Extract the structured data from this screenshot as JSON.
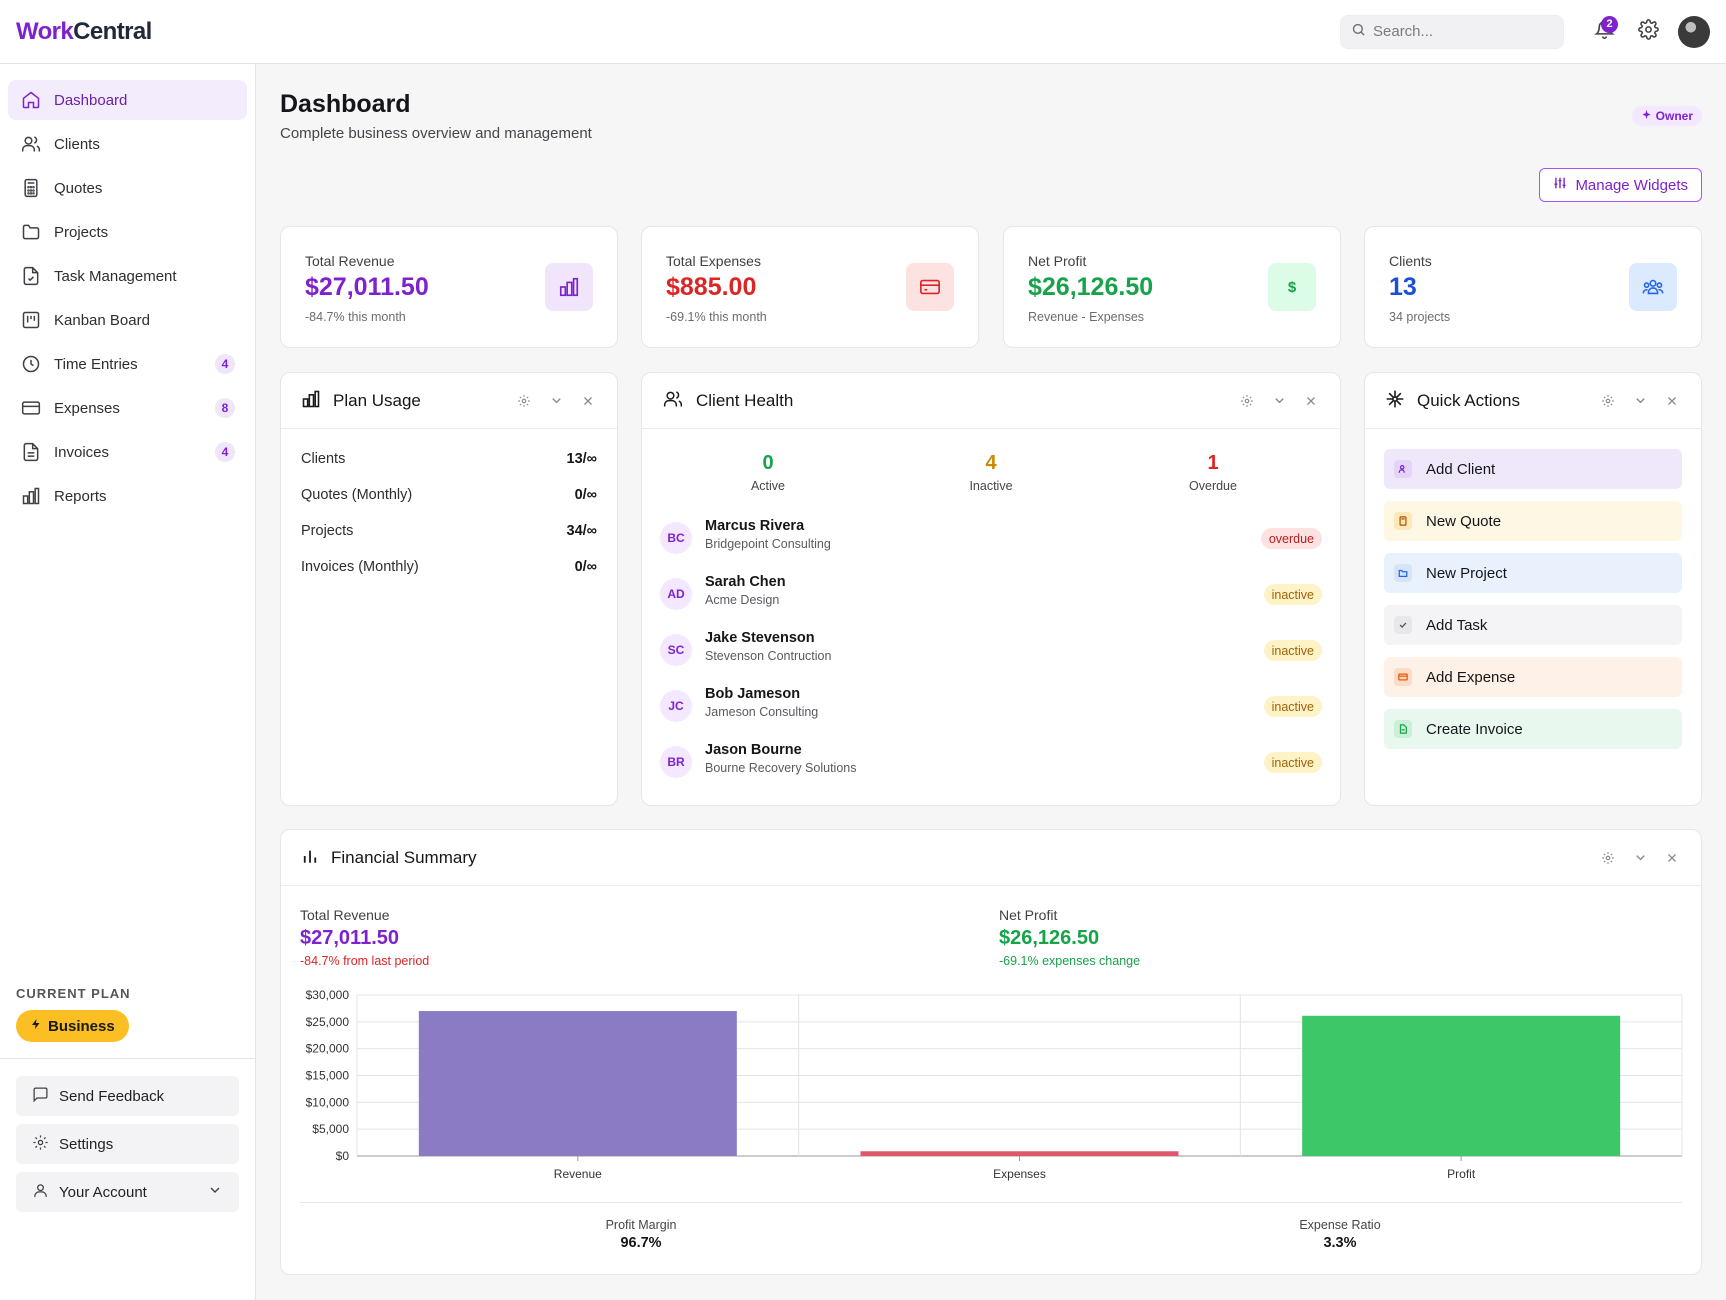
{
  "app": {
    "logo_part1": "Work",
    "logo_part2": "Central"
  },
  "topbar": {
    "search_placeholder": "Search...",
    "notification_count": "2"
  },
  "sidebar": {
    "items": [
      {
        "label": "Dashboard",
        "icon": "home-icon",
        "badge": ""
      },
      {
        "label": "Clients",
        "icon": "users-icon",
        "badge": ""
      },
      {
        "label": "Quotes",
        "icon": "calculator-icon",
        "badge": ""
      },
      {
        "label": "Projects",
        "icon": "folder-icon",
        "badge": ""
      },
      {
        "label": "Task Management",
        "icon": "task-file-icon",
        "badge": ""
      },
      {
        "label": "Kanban Board",
        "icon": "kanban-icon",
        "badge": ""
      },
      {
        "label": "Time Entries",
        "icon": "clock-icon",
        "badge": "4"
      },
      {
        "label": "Expenses",
        "icon": "credit-card-icon",
        "badge": "8"
      },
      {
        "label": "Invoices",
        "icon": "invoice-icon",
        "badge": "4"
      },
      {
        "label": "Reports",
        "icon": "bar-chart-icon",
        "badge": ""
      }
    ],
    "plan_title": "CURRENT PLAN",
    "plan_name": "Business",
    "feedback_label": "Send Feedback",
    "settings_label": "Settings",
    "account_label": "Your Account"
  },
  "header": {
    "title": "Dashboard",
    "subtitle": "Complete business overview and management",
    "role_badge": "Owner",
    "manage_widgets_label": "Manage Widgets"
  },
  "stats": [
    {
      "label": "Total Revenue",
      "value": "$27,011.50",
      "sub": "-84.7% this month",
      "color": "#7e22ce"
    },
    {
      "label": "Total Expenses",
      "value": "$885.00",
      "sub": "-69.1% this month",
      "color": "#dc2626"
    },
    {
      "label": "Net Profit",
      "value": "$26,126.50",
      "sub": "Revenue - Expenses",
      "color": "#16a34a"
    },
    {
      "label": "Clients",
      "value": "13",
      "sub": "34 projects",
      "color": "#1d4ed8"
    }
  ],
  "plan_usage": {
    "title": "Plan Usage",
    "rows": [
      {
        "label": "Clients",
        "value": "13/∞"
      },
      {
        "label": "Quotes (Monthly)",
        "value": "0/∞"
      },
      {
        "label": "Projects",
        "value": "34/∞"
      },
      {
        "label": "Invoices (Monthly)",
        "value": "0/∞"
      }
    ]
  },
  "client_health": {
    "title": "Client Health",
    "summary": [
      {
        "count": "0",
        "label": "Active",
        "color": "#16a34a"
      },
      {
        "count": "4",
        "label": "Inactive",
        "color": "#ca8a04"
      },
      {
        "count": "1",
        "label": "Overdue",
        "color": "#dc2626"
      }
    ],
    "clients": [
      {
        "initials": "BC",
        "name": "Marcus Rivera",
        "company": "Bridgepoint Consulting",
        "status": "overdue"
      },
      {
        "initials": "AD",
        "name": "Sarah Chen",
        "company": "Acme Design",
        "status": "inactive"
      },
      {
        "initials": "SC",
        "name": "Jake Stevenson",
        "company": "Stevenson Contruction",
        "status": "inactive"
      },
      {
        "initials": "JC",
        "name": "Bob Jameson",
        "company": "Jameson Consulting",
        "status": "inactive"
      },
      {
        "initials": "BR",
        "name": "Jason Bourne",
        "company": "Bourne Recovery Solutions",
        "status": "inactive"
      }
    ]
  },
  "quick_actions": {
    "title": "Quick Actions",
    "actions": [
      {
        "label": "Add Client",
        "icon": "user-plus-icon",
        "bg": "#efe8fb",
        "ico_bg": "#e4d5f8"
      },
      {
        "label": "New Quote",
        "icon": "calculator-icon",
        "bg": "#fef7e4",
        "ico_bg": "#fde9b8"
      },
      {
        "label": "New Project",
        "icon": "folder-icon",
        "bg": "#e9f1fc",
        "ico_bg": "#d6e4f8"
      },
      {
        "label": "Add Task",
        "icon": "check-icon",
        "bg": "#f4f4f6",
        "ico_bg": "#e8e8ec"
      },
      {
        "label": "Add Expense",
        "icon": "credit-card-icon",
        "bg": "#fef1e7",
        "ico_bg": "#fcdcc4"
      },
      {
        "label": "Create Invoice",
        "icon": "invoice-icon",
        "bg": "#e9f8ee",
        "ico_bg": "#ccefd8"
      }
    ]
  },
  "financial_summary": {
    "title": "Financial Summary",
    "revenue_label": "Total Revenue",
    "revenue_value": "$27,011.50",
    "revenue_change": "-84.7% from last period",
    "profit_label": "Net Profit",
    "profit_value": "$26,126.50",
    "profit_change": "-69.1% expenses change",
    "profit_margin_label": "Profit Margin",
    "profit_margin_value": "96.7%",
    "expense_ratio_label": "Expense Ratio",
    "expense_ratio_value": "3.3%"
  },
  "chart_data": {
    "type": "bar",
    "categories": [
      "Revenue",
      "Expenses",
      "Profit"
    ],
    "values": [
      27011.5,
      885,
      26126.5
    ],
    "colors": [
      "#8b7bc4",
      "#e0566a",
      "#3ec768"
    ],
    "yticks": [
      "$0",
      "$5,000",
      "$10,000",
      "$15,000",
      "$20,000",
      "$25,000",
      "$30,000"
    ],
    "ylim": [
      0,
      30000
    ],
    "grid": true
  }
}
